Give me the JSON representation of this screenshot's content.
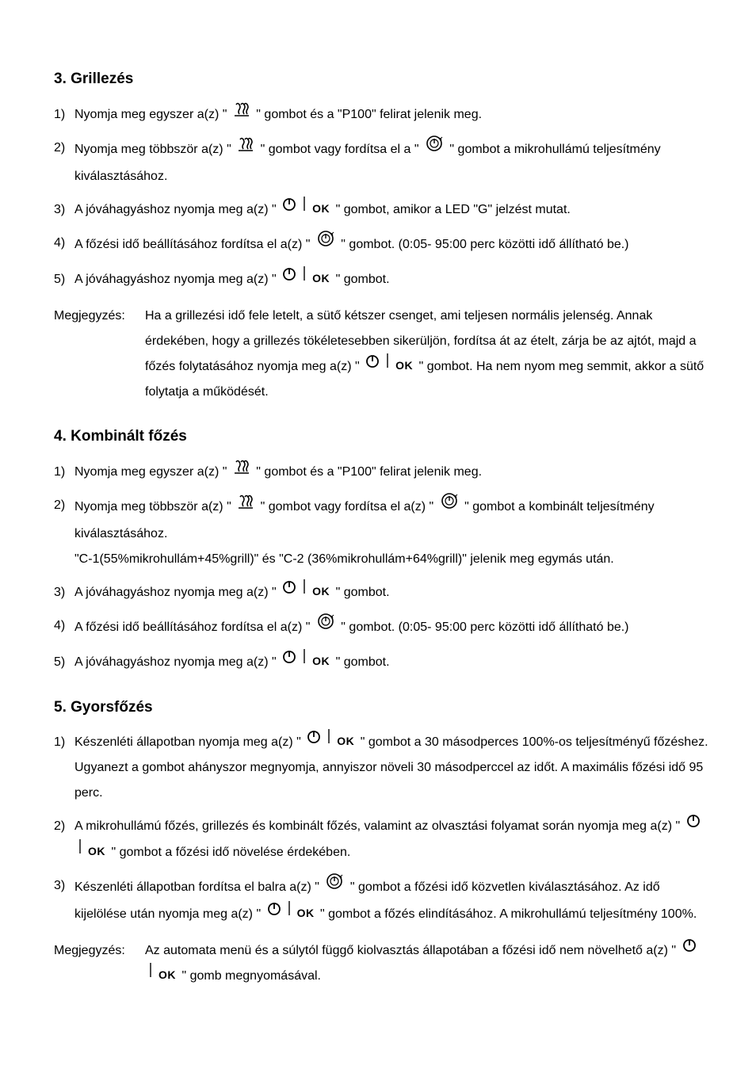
{
  "section3": {
    "title": "3. Grillezés",
    "items": [
      {
        "num": "1)",
        "pre": "Nyomja meg egyszer a(z) \" ",
        "icons": [
          "waves"
        ],
        "post": " \" gombot és a \"P100\" felirat jelenik meg."
      },
      {
        "num": "2)",
        "pre": "Nyomja meg többször a(z) \" ",
        "icons": [
          "waves"
        ],
        "mid1": " \" gombot vagy fordítsa el a \" ",
        "icons2": [
          "dial"
        ],
        "post": " \" gombot a mikrohullámú teljesítmény kiválasztásához."
      },
      {
        "num": "3)",
        "pre": "A jóváhagyáshoz nyomja meg a(z) \" ",
        "icons": [
          "power",
          "bar",
          "ok"
        ],
        "post": " \" gombot, amikor a LED \"G\" jelzést mutat."
      },
      {
        "num": "4)",
        "pre": "A főzési idő beállításához fordítsa el a(z) \" ",
        "icons": [
          "dial"
        ],
        "post": " \" gombot. (0:05- 95:00 perc közötti idő állítható be.)"
      },
      {
        "num": "5)",
        "pre": "A jóváhagyáshoz nyomja meg a(z) \" ",
        "icons": [
          "power",
          "bar",
          "ok"
        ],
        "post": " \" gombot."
      }
    ],
    "noteLabel": "Megjegyzés:",
    "notePre": "Ha a grillezési idő fele letelt, a sütő kétszer csenget, ami teljesen normális jelenség. Annak érdekében, hogy a grillezés tökéletesebben sikerüljön, fordítsa át az ételt, zárja be az ajtót, majd a főzés folytatásához nyomja meg a(z) \" ",
    "noteIcons": [
      "power",
      "bar",
      "ok"
    ],
    "notePost": " \" gombot. Ha nem nyom meg semmit, akkor a sütő folytatja a működését."
  },
  "section4": {
    "title": "4. Kombinált főzés",
    "items": [
      {
        "num": "1)",
        "pre": "Nyomja meg egyszer a(z) \" ",
        "icons": [
          "waves"
        ],
        "post": " \" gombot és a \"P100\" felirat jelenik meg."
      },
      {
        "num": "2)",
        "pre": "Nyomja meg többször a(z) \" ",
        "icons": [
          "waves"
        ],
        "mid1": " \" gombot vagy fordítsa el a(z) \" ",
        "icons2": [
          "dial"
        ],
        "post": " \" gombot a kombinált teljesítmény kiválasztásához.",
        "extra": "\"C-1(55%mikrohullám+45%grill)\" és \"C-2 (36%mikrohullám+64%grill)\" jelenik meg egymás után."
      },
      {
        "num": "3)",
        "pre": "A jóváhagyáshoz nyomja meg a(z) \" ",
        "icons": [
          "power",
          "bar",
          "ok"
        ],
        "post": " \" gombot."
      },
      {
        "num": "4)",
        "pre": "A főzési idő beállításához fordítsa el a(z) \" ",
        "icons": [
          "dial"
        ],
        "post": " \" gombot. (0:05- 95:00 perc közötti idő állítható be.)"
      },
      {
        "num": "5)",
        "pre": "A jóváhagyáshoz nyomja meg a(z) \" ",
        "icons": [
          "power",
          "bar",
          "ok"
        ],
        "post": " \" gombot."
      }
    ]
  },
  "section5": {
    "title": "5. Gyorsfőzés",
    "items": [
      {
        "num": "1)",
        "pre": "Készenléti állapotban nyomja meg a(z) \" ",
        "icons": [
          "power",
          "bar",
          "ok"
        ],
        "post": " \" gombot a 30 másodperces 100%-os teljesítményű főzéshez. Ugyanezt a gombot ahányszor megnyomja, annyiszor növeli 30 másodperccel az időt. A maximális főzési idő 95 perc."
      },
      {
        "num": "2)",
        "pre": "A mikrohullámú főzés, grillezés és kombinált főzés, valamint az olvasztási folyamat során nyomja meg a(z) \" ",
        "icons": [
          "power",
          "bar",
          "ok"
        ],
        "post": " \" gombot a főzési idő növelése érdekében."
      },
      {
        "num": "3)",
        "pre": "Készenléti állapotban fordítsa el balra a(z) \" ",
        "icons": [
          "dial"
        ],
        "mid1": " \" gombot a főzési idő közvetlen kiválasztásához. Az idő kijelölése után nyomja meg a(z) \" ",
        "icons2": [
          "power",
          "bar",
          "ok"
        ],
        "post": " \" gombot a főzés elindításához. A mikrohullámú teljesítmény 100%."
      }
    ],
    "noteLabel": "Megjegyzés:",
    "notePre": "Az automata menü és a súlytól függő kiolvasztás állapotában a főzési idő nem növelhető a(z) \" ",
    "noteIcons": [
      "power",
      "bar",
      "ok"
    ],
    "notePost": " \" gomb megnyomásával."
  }
}
